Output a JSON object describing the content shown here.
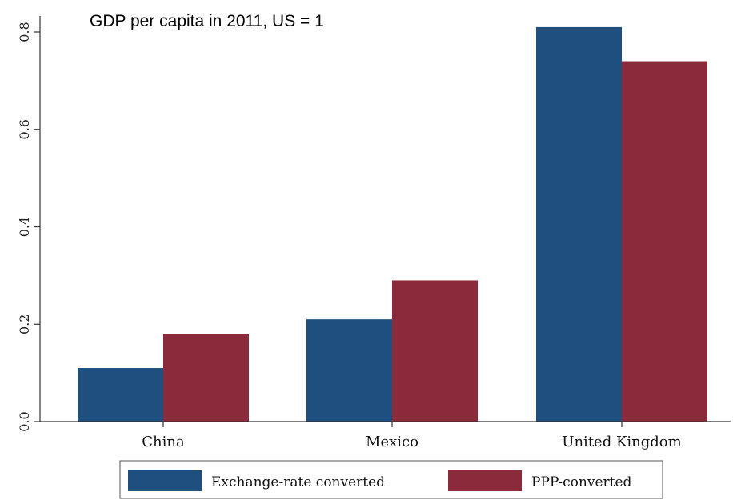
{
  "chart_data": {
    "type": "bar",
    "title": "GDP per capita in 2011, US = 1",
    "xlabel": "",
    "ylabel": "",
    "categories": [
      "China",
      "Mexico",
      "United Kingdom"
    ],
    "series": [
      {
        "name": "Exchange-rate converted",
        "color": "#1f4f7f",
        "values": [
          0.11,
          0.21,
          0.81
        ]
      },
      {
        "name": "PPP-converted",
        "color": "#8b2a3a",
        "values": [
          0.18,
          0.29,
          0.74
        ]
      }
    ],
    "ylim": [
      0,
      0.82
    ],
    "yticks": [
      0,
      0.2,
      0.4,
      0.6,
      0.8
    ],
    "ytick_labels": [
      "0.0",
      "0.2",
      "0.4",
      "0.6",
      "0.8"
    ],
    "grid": false,
    "legend": "bottom"
  }
}
